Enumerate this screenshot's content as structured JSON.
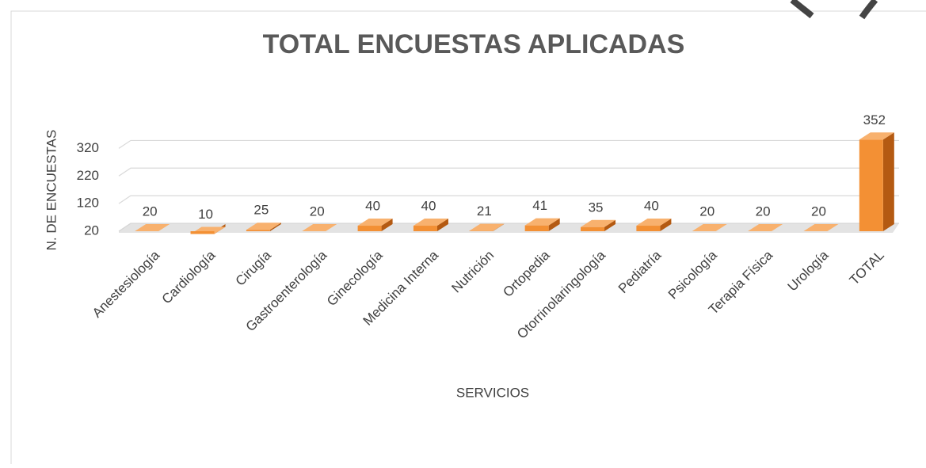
{
  "chart_data": {
    "type": "bar3d",
    "title": "TOTAL ENCUESTAS APLICADAS",
    "x_label": "SERVICIOS",
    "y_label": "N. DE ENCUESTAS",
    "categories": [
      "Anestesiología",
      "Cardiología",
      "Cirugía",
      "Gastroenterología",
      "Ginecología",
      "Medicina Interna",
      "Nutrición",
      "Ortopedia",
      "Otorrinolaringología",
      "Pediatría",
      "Psicología",
      "Terapia Física",
      "Urología",
      "TOTAL"
    ],
    "values": [
      20,
      10,
      25,
      20,
      40,
      40,
      21,
      41,
      35,
      40,
      20,
      20,
      20,
      352
    ],
    "color": "#f39034",
    "ylim": [
      20,
      370
    ],
    "yticks": [
      20,
      120,
      220,
      320
    ],
    "grid": true
  }
}
